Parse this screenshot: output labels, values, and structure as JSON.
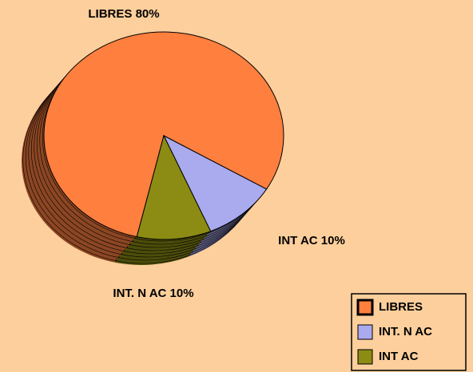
{
  "chart_data": {
    "type": "pie",
    "categories": [
      "LIBRES",
      "INT. N AC",
      "INT AC"
    ],
    "values": [
      80,
      10,
      10
    ],
    "value_labels": [
      "LIBRES 80%",
      "INT. N AC 10%",
      "INT AC 10%"
    ],
    "colors": [
      "#ff7f3f",
      "#aaaaee",
      "#8c8c14"
    ],
    "legend": "bottom-right"
  }
}
